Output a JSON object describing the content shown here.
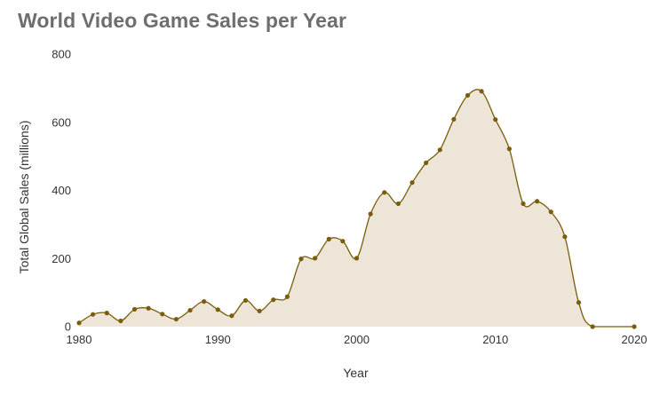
{
  "chart_data": {
    "type": "area",
    "title": "World Video Game Sales per Year",
    "xlabel": "Year",
    "ylabel": "Total Global Sales (millions)",
    "xlim": [
      1980,
      2020
    ],
    "ylim": [
      0,
      800
    ],
    "xticks": [
      "1980",
      "1990",
      "2000",
      "2010",
      "2020"
    ],
    "yticks": [
      "0",
      "200",
      "400",
      "600",
      "800"
    ],
    "grid": false,
    "legend": "none",
    "colors": {
      "line": "#7a5c0a",
      "fill": "#ede6d8",
      "marker": "#7a5c0a"
    },
    "series": [
      {
        "x": [
          1980,
          1981,
          1982,
          1983,
          1984,
          1985,
          1986,
          1987,
          1988,
          1989,
          1990,
          1991,
          1992,
          1993,
          1994,
          1995,
          1996,
          1997,
          1998,
          1999,
          2000,
          2001,
          2002,
          2003,
          2004,
          2005,
          2006,
          2007,
          2008,
          2009,
          2010,
          2011,
          2012,
          2013,
          2014,
          2015,
          2016,
          2017,
          2020
        ],
        "y": [
          11,
          36,
          40,
          17,
          51,
          54,
          37,
          22,
          48,
          74,
          50,
          32,
          77,
          46,
          79,
          88,
          199,
          201,
          257,
          251,
          201,
          331,
          394,
          361,
          423,
          481,
          519,
          609,
          679,
          691,
          608,
          522,
          361,
          368,
          337,
          264,
          71,
          0,
          0
        ]
      }
    ]
  }
}
